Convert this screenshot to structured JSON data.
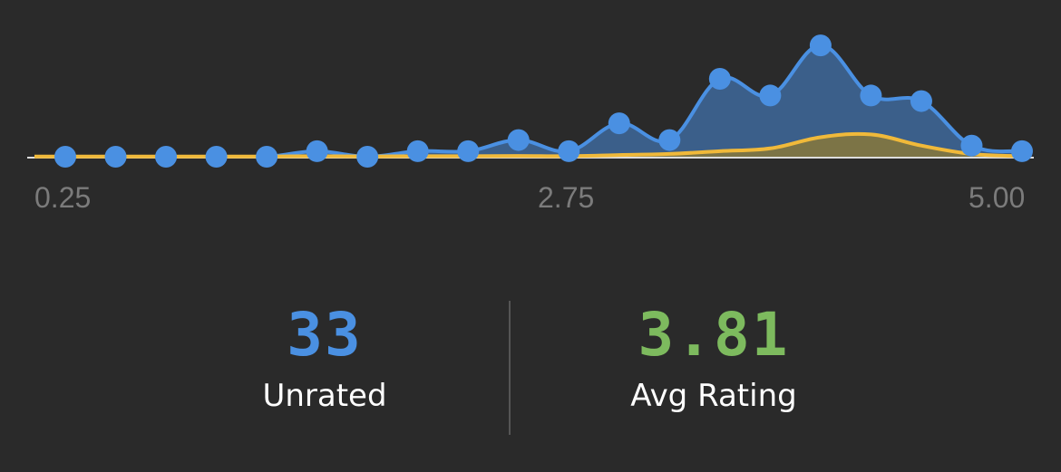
{
  "chart_data": {
    "type": "area",
    "x_ticks": [
      "0.25",
      "2.75",
      "5.00"
    ],
    "xlim": [
      0.25,
      5.0
    ],
    "x": [
      0.25,
      0.5,
      0.75,
      1.0,
      1.25,
      1.5,
      1.75,
      2.0,
      2.25,
      2.5,
      2.75,
      3.0,
      3.25,
      3.5,
      3.75,
      4.0,
      4.25,
      4.5,
      4.75,
      5.0
    ],
    "series": [
      {
        "color": "#4a90e2",
        "fill": "#3b5f8a",
        "values": [
          0,
          0,
          0,
          0,
          0,
          1,
          0,
          1,
          1,
          3,
          1,
          6,
          3,
          14,
          11,
          20,
          11,
          10,
          2,
          1
        ],
        "markers": true
      },
      {
        "color": "#f0b93a",
        "fill": "#7c7446",
        "values": [
          0.05,
          0.05,
          0.05,
          0.05,
          0.05,
          0.1,
          0.05,
          0.1,
          0.1,
          0.15,
          0.1,
          0.3,
          0.5,
          1,
          1.5,
          3.5,
          4,
          2,
          0.5,
          0.1
        ],
        "markers": false
      }
    ],
    "ylim": [
      0,
      21
    ],
    "grid": false
  },
  "stats": {
    "unrated_value": "33",
    "unrated_label": "Unrated",
    "avg_value": "3.81",
    "avg_label": "Avg Rating",
    "unrated_color": "#4a90e2",
    "avg_color": "#7dba5e"
  }
}
